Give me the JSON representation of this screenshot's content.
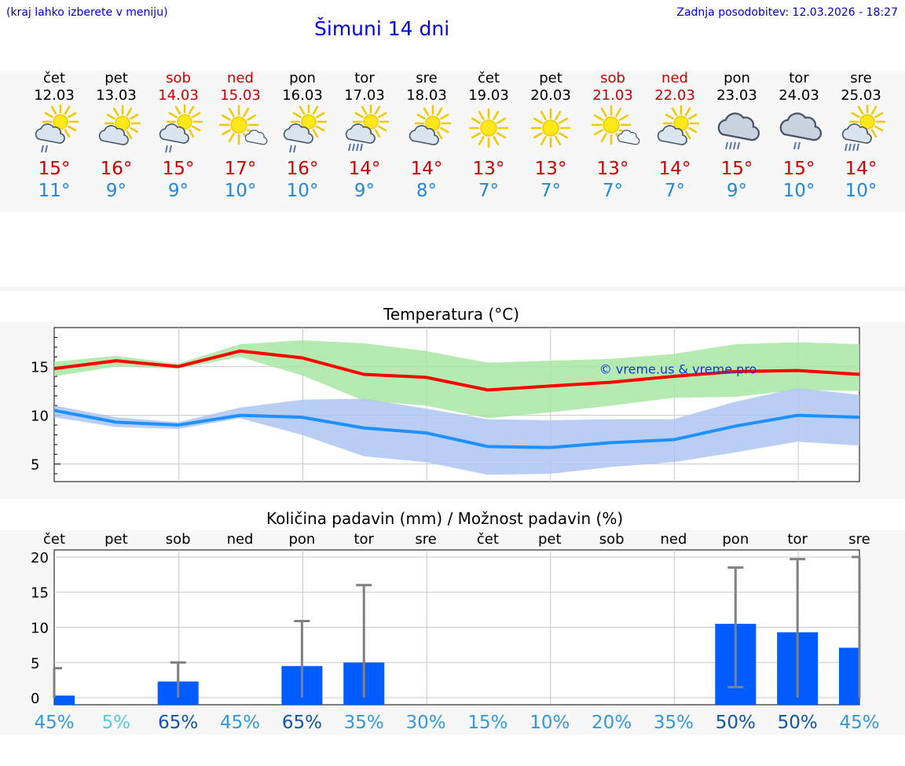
{
  "header": {
    "hint": "(kraj lahko izberete v meniju)",
    "title": "Šimuni 14 dni",
    "updated": "Zadnja posodobitev: 12.03.2026 - 18:27"
  },
  "days": [
    {
      "name": "čet",
      "date": "12.03",
      "icon": "sun-cloud-rain-icon",
      "hi": "15°",
      "lo": "11°",
      "weekend": false
    },
    {
      "name": "pet",
      "date": "13.03",
      "icon": "sun-cloud-icon",
      "hi": "16°",
      "lo": "9°",
      "weekend": false
    },
    {
      "name": "sob",
      "date": "14.03",
      "icon": "sun-cloud-rain-icon",
      "hi": "15°",
      "lo": "9°",
      "weekend": true
    },
    {
      "name": "ned",
      "date": "15.03",
      "icon": "sun-small-cloud-icon",
      "hi": "17°",
      "lo": "10°",
      "weekend": true
    },
    {
      "name": "pon",
      "date": "16.03",
      "icon": "sun-cloud-rain-icon",
      "hi": "16°",
      "lo": "10°",
      "weekend": false
    },
    {
      "name": "tor",
      "date": "17.03",
      "icon": "sun-cloud-heavy-rain-icon",
      "hi": "14°",
      "lo": "9°",
      "weekend": false
    },
    {
      "name": "sre",
      "date": "18.03",
      "icon": "sun-cloud-icon",
      "hi": "14°",
      "lo": "8°",
      "weekend": false
    },
    {
      "name": "čet",
      "date": "19.03",
      "icon": "sun-icon",
      "hi": "13°",
      "lo": "7°",
      "weekend": false
    },
    {
      "name": "pet",
      "date": "20.03",
      "icon": "sun-icon",
      "hi": "13°",
      "lo": "7°",
      "weekend": false
    },
    {
      "name": "sob",
      "date": "21.03",
      "icon": "sun-small-cloud-icon",
      "hi": "13°",
      "lo": "7°",
      "weekend": true
    },
    {
      "name": "ned",
      "date": "22.03",
      "icon": "sun-cloud-icon",
      "hi": "14°",
      "lo": "7°",
      "weekend": true
    },
    {
      "name": "pon",
      "date": "23.03",
      "icon": "cloud-rain-icon",
      "hi": "15°",
      "lo": "9°",
      "weekend": false
    },
    {
      "name": "tor",
      "date": "24.03",
      "icon": "cloud-rain-light-icon",
      "hi": "15°",
      "lo": "10°",
      "weekend": false
    },
    {
      "name": "sre",
      "date": "25.03",
      "icon": "sun-cloud-heavy-rain-icon",
      "hi": "14°",
      "lo": "10°",
      "weekend": false
    }
  ],
  "colors": {
    "hi": "#ff0000",
    "lo": "#1e90ff",
    "hiBand": "#a8e6a3",
    "loBand": "#aec6f2",
    "bar": "#005cff",
    "err": "#808080"
  },
  "chart_data": [
    {
      "type": "line",
      "title": "Temperatura (°C)",
      "watermark": "© vreme.us & vreme.pro",
      "x": [
        0,
        1,
        2,
        3,
        4,
        5,
        6,
        7,
        8,
        9,
        10,
        11,
        12,
        13
      ],
      "ylim": [
        3.2,
        19
      ],
      "yticks": [
        5,
        10,
        15
      ],
      "series": [
        {
          "name": "max",
          "values": [
            14.8,
            15.6,
            15.0,
            16.6,
            15.9,
            14.2,
            13.9,
            12.6,
            13.0,
            13.4,
            14.0,
            14.5,
            14.6,
            14.2
          ],
          "band_lo": [
            14.0,
            15.0,
            14.8,
            16.0,
            14.1,
            11.5,
            11.0,
            9.7,
            10.3,
            11.0,
            11.8,
            11.9,
            12.6,
            12.5
          ],
          "band_hi": [
            15.5,
            16.1,
            15.3,
            17.3,
            17.7,
            17.4,
            16.6,
            15.4,
            15.6,
            15.8,
            16.3,
            17.3,
            17.5,
            17.3
          ]
        },
        {
          "name": "min",
          "values": [
            10.5,
            9.3,
            9.0,
            10.0,
            9.8,
            8.7,
            8.2,
            6.8,
            6.7,
            7.2,
            7.5,
            8.9,
            10.0,
            9.8
          ],
          "band_lo": [
            9.8,
            8.8,
            8.6,
            9.7,
            8.0,
            5.8,
            5.2,
            3.9,
            4.0,
            4.7,
            5.2,
            6.2,
            7.3,
            6.9
          ],
          "band_hi": [
            11.0,
            9.8,
            9.3,
            10.8,
            11.6,
            11.7,
            10.7,
            9.6,
            9.5,
            9.6,
            9.6,
            11.4,
            12.8,
            12.1
          ]
        }
      ]
    },
    {
      "type": "bar",
      "title": "Količina padavin (mm) / Možnost padavin (%)",
      "categories": [
        "čet",
        "pet",
        "sob",
        "ned",
        "pon",
        "tor",
        "sre",
        "čet",
        "pet",
        "sob",
        "ned",
        "pon",
        "tor",
        "sre"
      ],
      "values": [
        0.3,
        0,
        2.3,
        0,
        4.5,
        5.0,
        0,
        0,
        0,
        0,
        0,
        10.5,
        9.3,
        7.1
      ],
      "err_hi": [
        4.2,
        0,
        5.0,
        0,
        10.9,
        16.0,
        0,
        0,
        0,
        0,
        0,
        18.5,
        19.7,
        20.0
      ],
      "err_lo": [
        0,
        0,
        0,
        0,
        0,
        0,
        0,
        0,
        0,
        0,
        0,
        1.5,
        0,
        0
      ],
      "ylim": [
        -1,
        21
      ],
      "yticks": [
        0,
        5,
        10,
        15,
        20
      ],
      "probabilities": [
        "45%",
        "5%",
        "65%",
        "45%",
        "65%",
        "35%",
        "30%",
        "15%",
        "10%",
        "20%",
        "35%",
        "50%",
        "50%",
        "45%"
      ],
      "probability_colors": [
        "#3399dd",
        "#55ccdd",
        "#1155aa",
        "#3399dd",
        "#1155aa",
        "#3399dd",
        "#3399dd",
        "#3399dd",
        "#3399dd",
        "#3399dd",
        "#3399dd",
        "#1155aa",
        "#1155aa",
        "#3399dd"
      ]
    }
  ]
}
